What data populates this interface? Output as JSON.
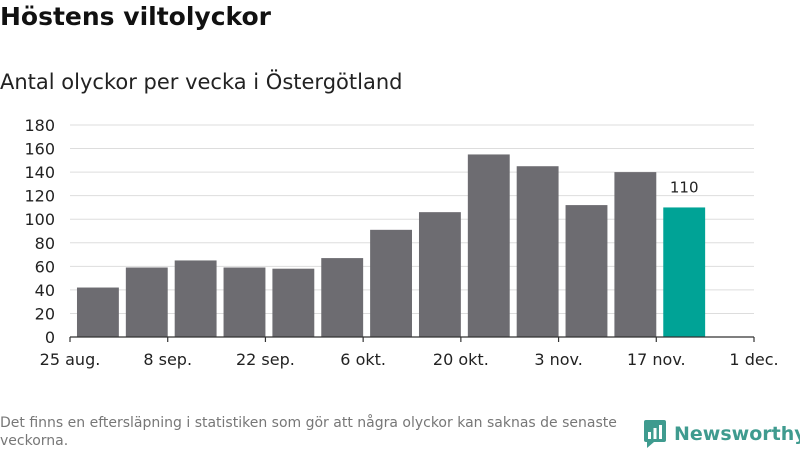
{
  "title": "Höstens viltolyckor",
  "subtitle": "Antal olyckor per vecka i Östergötland",
  "footnote": "Det finns en eftersläpning i statistiken som gör att några olyckor kan saknas de senaste veckorna.",
  "logo_text": "Newsworthy",
  "colors": {
    "bar": "#6d6c71",
    "highlight": "#00a396",
    "grid": "#dddddd",
    "axis": "#333333",
    "logo": "#3f9b8f"
  },
  "chart_data": {
    "type": "bar",
    "title": "Höstens viltolyckor",
    "subtitle": "Antal olyckor per vecka i Östergötland",
    "xlabel": "",
    "ylabel": "",
    "ylim": [
      0,
      180
    ],
    "yticks": [
      0,
      20,
      40,
      60,
      80,
      100,
      120,
      140,
      160,
      180
    ],
    "x_tick_labels": [
      "25 aug.",
      "8 sep.",
      "22 sep.",
      "6 okt.",
      "20 okt.",
      "3 nov.",
      "17 nov.",
      "1 dec."
    ],
    "weeks": [
      "2024-08-29",
      "2024-09-05",
      "2024-09-12",
      "2024-09-19",
      "2024-09-26",
      "2024-10-03",
      "2024-10-10",
      "2024-10-17",
      "2024-10-24",
      "2024-10-31",
      "2024-11-07",
      "2024-11-14",
      "2024-11-21"
    ],
    "values": [
      42,
      59,
      65,
      59,
      58,
      67,
      91,
      106,
      155,
      145,
      112,
      140,
      110
    ],
    "highlight_last": true,
    "data_labels": [
      {
        "week": "2024-11-21",
        "text": "110"
      }
    ],
    "grid": true
  }
}
